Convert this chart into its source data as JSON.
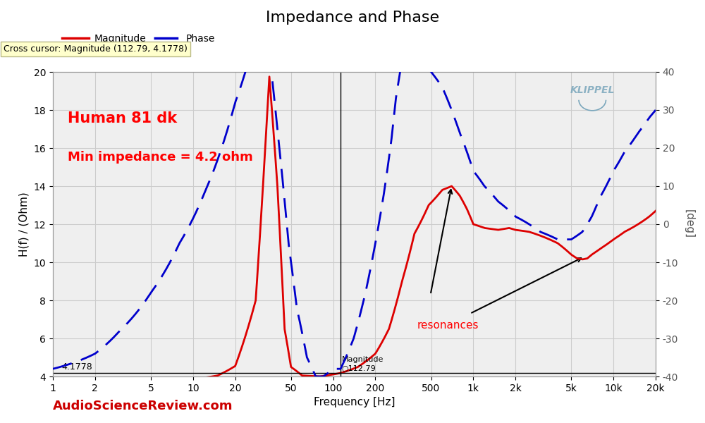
{
  "title": "Impedance and Phase",
  "xlabel": "Frequency [Hz]",
  "ylabel_left": "H(f) / (Ohm)",
  "ylabel_right": "[deg]",
  "cross_cursor_text": "Cross cursor: Magnitude (112.79, 4.1778)",
  "annotation_text1": "Human 81 dk",
  "annotation_text2": "Min impedance = 4.2 ohm",
  "watermark": "KLIPPEL",
  "asr_text": "AudioScienceReview.com",
  "ylim_left": [
    4,
    20
  ],
  "ylim_right": [
    -40,
    40
  ],
  "xlim_log": [
    1,
    20000
  ],
  "bg_color": "#ffffff",
  "plot_bg_color": "#efefef",
  "grid_color": "#cccccc",
  "magnitude_color": "#dd0000",
  "phase_color": "#0000cc",
  "title_fontsize": 16,
  "label_fontsize": 11,
  "tick_fontsize": 10,
  "xtick_positions": [
    1,
    2,
    5,
    10,
    20,
    50,
    100,
    200,
    500,
    1000,
    2000,
    5000,
    10000,
    20000
  ],
  "xtick_labels": [
    "1",
    "2",
    "5",
    "10",
    "20",
    "50",
    "100",
    "200",
    "500",
    "1k",
    "2k",
    "5k",
    "10k",
    "20k"
  ],
  "ytick_left": [
    4,
    6,
    8,
    10,
    12,
    14,
    16,
    18,
    20
  ],
  "ytick_right": [
    -40,
    -30,
    -20,
    -10,
    0,
    10,
    20,
    30,
    40
  ],
  "crosshair_x": 112.79,
  "crosshair_y": 4.1778
}
